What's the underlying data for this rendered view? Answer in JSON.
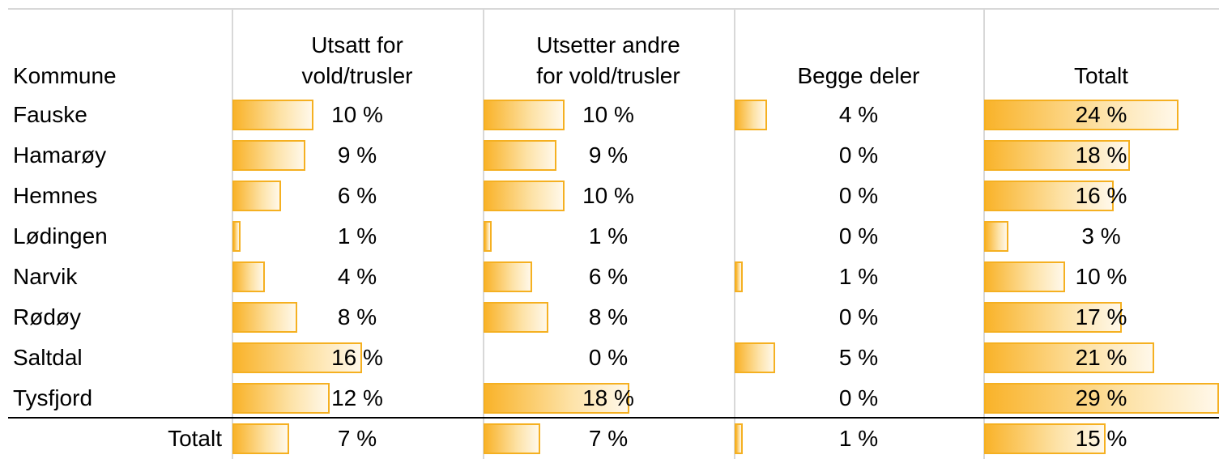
{
  "table": {
    "headers": [
      [
        "Kommune"
      ],
      [
        "Utsatt for",
        "vold/trusler"
      ],
      [
        "Utsetter andre",
        "for vold/trusler"
      ],
      [
        "Begge deler"
      ],
      [
        "Totalt"
      ]
    ],
    "rows": [
      {
        "name": "Fauske",
        "values": [
          10,
          10,
          4,
          24
        ],
        "value_labels": [
          "10 %",
          "10 %",
          "4 %",
          "24 %"
        ]
      },
      {
        "name": "Hamarøy",
        "values": [
          9,
          9,
          0,
          18
        ],
        "value_labels": [
          "9 %",
          "9 %",
          "0 %",
          "18 %"
        ]
      },
      {
        "name": "Hemnes",
        "values": [
          6,
          10,
          0,
          16
        ],
        "value_labels": [
          "6 %",
          "10 %",
          "0 %",
          "16 %"
        ]
      },
      {
        "name": "Lødingen",
        "values": [
          1,
          1,
          0,
          3
        ],
        "value_labels": [
          "1 %",
          "1 %",
          "0 %",
          "3 %"
        ]
      },
      {
        "name": "Narvik",
        "values": [
          4,
          6,
          1,
          10
        ],
        "value_labels": [
          "4 %",
          "6 %",
          "1 %",
          "10 %"
        ]
      },
      {
        "name": "Rødøy",
        "values": [
          8,
          8,
          0,
          17
        ],
        "value_labels": [
          "8 %",
          "8 %",
          "0 %",
          "17 %"
        ]
      },
      {
        "name": "Saltdal",
        "values": [
          16,
          0,
          5,
          21
        ],
        "value_labels": [
          "16 %",
          "0 %",
          "5 %",
          "21 %"
        ]
      },
      {
        "name": "Tysfjord",
        "values": [
          12,
          18,
          0,
          29
        ],
        "value_labels": [
          "12 %",
          "18 %",
          "0 %",
          "29 %"
        ]
      },
      {
        "name": "Totalt",
        "values": [
          7,
          7,
          1,
          15
        ],
        "value_labels": [
          "7 %",
          "7 %",
          "1 %",
          "15 %"
        ]
      }
    ]
  }
}
